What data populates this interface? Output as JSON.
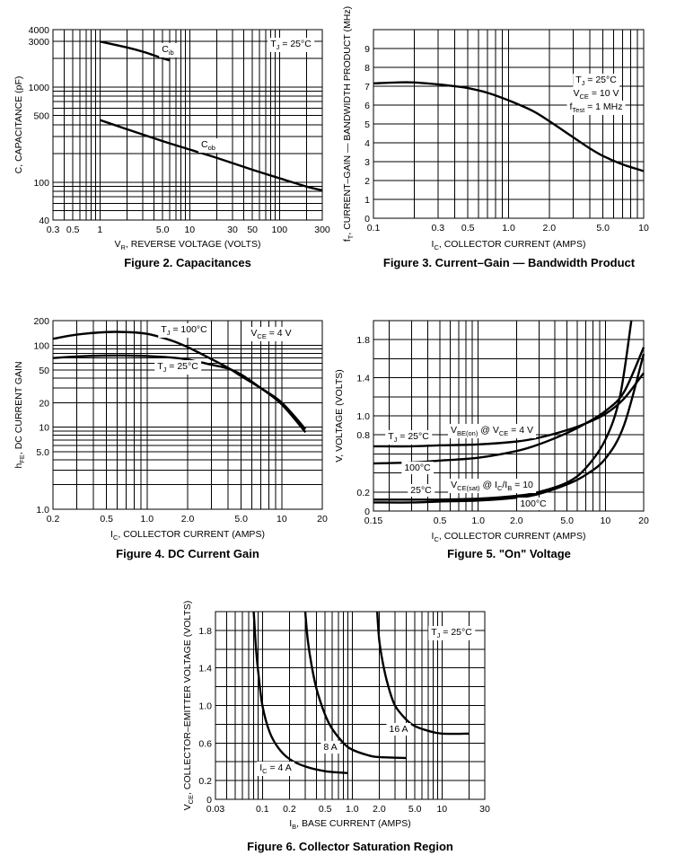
{
  "chart_data": [
    {
      "id": "fig2",
      "type": "line",
      "title": "Figure 2. Capacitances",
      "xlabel": "V_R, REVERSE VOLTAGE (VOLTS)",
      "ylabel": "C, CAPACITANCE (pF)",
      "xscale": "log",
      "yscale": "log",
      "xlim": [
        0.3,
        300
      ],
      "ylim": [
        40,
        4000
      ],
      "xticks": [
        {
          "v": 0.3,
          "l": "0.3"
        },
        {
          "v": 0.5,
          "l": "0.5"
        },
        {
          "v": 1,
          "l": "1"
        },
        {
          "v": 5,
          "l": "5.0"
        },
        {
          "v": 10,
          "l": "10"
        },
        {
          "v": 30,
          "l": "30"
        },
        {
          "v": 50,
          "l": "50"
        },
        {
          "v": 100,
          "l": "100"
        },
        {
          "v": 300,
          "l": "300"
        }
      ],
      "yticks": [
        {
          "v": 40,
          "l": "40"
        },
        {
          "v": 100,
          "l": "100"
        },
        {
          "v": 500,
          "l": "500"
        },
        {
          "v": 1000,
          "l": "1000"
        },
        {
          "v": 3000,
          "l": "3000"
        },
        {
          "v": 4000,
          "l": "4000"
        }
      ],
      "annotations": [
        {
          "text": "T_J = 25°C",
          "x": 160,
          "y": 3000
        }
      ],
      "series": [
        {
          "name": "C_ib",
          "label_at": [
            4.2,
            2600
          ],
          "x": [
            1,
            2,
            3,
            4,
            5,
            6
          ],
          "y": [
            3000,
            2600,
            2350,
            2150,
            2000,
            1900
          ]
        },
        {
          "name": "C_ob",
          "label_at": [
            18,
            190
          ],
          "x": [
            1,
            2,
            5,
            10,
            20,
            50,
            100,
            200,
            300
          ],
          "y": [
            450,
            360,
            270,
            220,
            180,
            135,
            110,
            90,
            82
          ]
        }
      ]
    },
    {
      "id": "fig3",
      "type": "line",
      "title": "Figure 3. Current–Gain — Bandwidth Product",
      "xlabel": "I_C, COLLECTOR CURRENT (AMPS)",
      "ylabel": "f_T, CURRENT–GAIN — BANDWIDTH PRODUCT (MHz)",
      "xscale": "log",
      "yscale": "linear",
      "xlim": [
        0.1,
        10
      ],
      "ylim": [
        0,
        10
      ],
      "xticks": [
        {
          "v": 0.1,
          "l": "0.1"
        },
        {
          "v": 0.3,
          "l": "0.3"
        },
        {
          "v": 0.5,
          "l": "0.5"
        },
        {
          "v": 1,
          "l": "1.0"
        },
        {
          "v": 2,
          "l": "2.0"
        },
        {
          "v": 5,
          "l": "5.0"
        },
        {
          "v": 10,
          "l": "10"
        }
      ],
      "yticks": [
        {
          "v": 0,
          "l": "0"
        },
        {
          "v": 1,
          "l": "1"
        },
        {
          "v": 2,
          "l": "2"
        },
        {
          "v": 3,
          "l": "3"
        },
        {
          "v": 4,
          "l": "4"
        },
        {
          "v": 5,
          "l": "5"
        },
        {
          "v": 6,
          "l": "6"
        },
        {
          "v": 7,
          "l": "7"
        },
        {
          "v": 8,
          "l": "8"
        },
        {
          "v": 9,
          "l": "9"
        }
      ],
      "annotations": [
        {
          "text": "T_J = 25°C"
        },
        {
          "text": "V_CE = 10 V"
        },
        {
          "text": "f_Test = 1 MHz"
        }
      ],
      "series": [
        {
          "name": "f_T",
          "x": [
            0.1,
            0.15,
            0.2,
            0.3,
            0.4,
            0.5,
            0.7,
            1.0,
            1.5,
            2.0,
            3.0,
            4.0,
            5.0,
            7.0,
            10
          ],
          "y": [
            7.15,
            7.2,
            7.2,
            7.1,
            7.0,
            6.9,
            6.65,
            6.25,
            5.7,
            5.15,
            4.3,
            3.7,
            3.3,
            2.85,
            2.5
          ]
        }
      ]
    },
    {
      "id": "fig4",
      "type": "line",
      "title": "Figure 4. DC Current Gain",
      "xlabel": "I_C, COLLECTOR CURRENT (AMPS)",
      "ylabel": "h_FE, DC CURRENT GAIN",
      "xscale": "log",
      "yscale": "log",
      "xlim": [
        0.2,
        20
      ],
      "ylim": [
        1,
        200
      ],
      "xticks": [
        {
          "v": 0.2,
          "l": "0.2"
        },
        {
          "v": 0.5,
          "l": "0.5"
        },
        {
          "v": 1,
          "l": "1.0"
        },
        {
          "v": 2,
          "l": "2.0"
        },
        {
          "v": 5,
          "l": "5.0"
        },
        {
          "v": 10,
          "l": "10"
        },
        {
          "v": 20,
          "l": "20"
        }
      ],
      "yticks": [
        {
          "v": 1,
          "l": "1.0"
        },
        {
          "v": 5,
          "l": "5.0"
        },
        {
          "v": 10,
          "l": "10"
        },
        {
          "v": 20,
          "l": "20"
        },
        {
          "v": 50,
          "l": "50"
        },
        {
          "v": 100,
          "l": "100"
        },
        {
          "v": 200,
          "l": "200"
        }
      ],
      "annotations": [
        {
          "text": "V_CE = 4 V"
        }
      ],
      "series": [
        {
          "name": "T_J = 100°C",
          "x": [
            0.2,
            0.3,
            0.5,
            0.7,
            1.0,
            1.5,
            2.0,
            3.0,
            4.0,
            5.0,
            7.0,
            10,
            15
          ],
          "y": [
            120,
            135,
            145,
            145,
            138,
            115,
            95,
            68,
            53,
            42,
            30,
            20,
            9.5
          ]
        },
        {
          "name": "T_J = 25°C",
          "x": [
            0.2,
            0.3,
            0.5,
            0.7,
            1.0,
            1.5,
            2.0,
            3.0,
            4.0,
            5.0,
            7.0,
            10,
            15
          ],
          "y": [
            70,
            73,
            75,
            75,
            74,
            71,
            67,
            58,
            52,
            44,
            30,
            19,
            8.7
          ]
        }
      ]
    },
    {
      "id": "fig5",
      "type": "line",
      "title": "Figure 5. \"On\" Voltage",
      "xlabel": "I_C, COLLECTOR CURRENT (AMPS)",
      "ylabel": "V, VOLTAGE (VOLTS)",
      "xscale": "log",
      "yscale": "linear",
      "xlim": [
        0.15,
        20
      ],
      "ylim": [
        0,
        2.0
      ],
      "xticks": [
        {
          "v": 0.15,
          "l": "0.15"
        },
        {
          "v": 0.5,
          "l": "0.5"
        },
        {
          "v": 1,
          "l": "1.0"
        },
        {
          "v": 2,
          "l": "2.0"
        },
        {
          "v": 5,
          "l": "5.0"
        },
        {
          "v": 10,
          "l": "10"
        },
        {
          "v": 20,
          "l": "20"
        }
      ],
      "yticks": [
        {
          "v": 0,
          "l": "0"
        },
        {
          "v": 0.2,
          "l": "0.2"
        },
        {
          "v": 0.8,
          "l": "0.8"
        },
        {
          "v": 1.0,
          "l": "1.0"
        },
        {
          "v": 1.4,
          "l": "1.4"
        },
        {
          "v": 1.8,
          "l": "1.8"
        }
      ],
      "annotations": [
        {
          "text": "V_BE(on) @ V_CE = 4 V"
        },
        {
          "text": "V_CE(sat) @ I_C/I_B = 10"
        },
        {
          "text": "T_J = 25°C"
        },
        {
          "text": "100°C"
        },
        {
          "text": "25°C"
        },
        {
          "text": "100°C"
        }
      ],
      "series": [
        {
          "name": "V_BE(on) 25°C",
          "x": [
            0.15,
            0.3,
            0.5,
            1.0,
            2.0,
            3.0,
            5.0,
            7.0,
            10,
            14,
            20
          ],
          "y": [
            0.68,
            0.68,
            0.69,
            0.7,
            0.73,
            0.77,
            0.85,
            0.92,
            1.02,
            1.18,
            1.45
          ]
        },
        {
          "name": "V_BE(on) 100°C",
          "x": [
            0.15,
            0.3,
            0.5,
            1.0,
            2.0,
            3.0,
            5.0,
            7.0,
            10,
            14,
            20
          ],
          "y": [
            0.5,
            0.51,
            0.53,
            0.56,
            0.63,
            0.7,
            0.82,
            0.92,
            1.05,
            1.25,
            1.72
          ]
        },
        {
          "name": "V_CE(sat) 25°C",
          "x": [
            0.15,
            0.3,
            0.5,
            1.0,
            2.0,
            3.0,
            5.0,
            7.0,
            10,
            13,
            16
          ],
          "y": [
            0.12,
            0.12,
            0.12,
            0.13,
            0.16,
            0.2,
            0.3,
            0.45,
            0.75,
            1.2,
            2.0
          ]
        },
        {
          "name": "V_CE(sat) 100°C",
          "x": [
            0.15,
            0.3,
            0.5,
            1.0,
            2.0,
            3.0,
            5.0,
            7.0,
            10,
            14,
            20
          ],
          "y": [
            0.09,
            0.09,
            0.1,
            0.11,
            0.14,
            0.18,
            0.28,
            0.38,
            0.55,
            0.9,
            1.65
          ]
        }
      ]
    },
    {
      "id": "fig6",
      "type": "line",
      "title": "Figure 6. Collector Saturation Region",
      "xlabel": "I_B, BASE CURRENT (AMPS)",
      "ylabel": "V_CE, COLLECTOR–EMITTER VOLTAGE (VOLTS)",
      "xscale": "log",
      "yscale": "linear",
      "xlim": [
        0.03,
        30
      ],
      "ylim": [
        0,
        2.0
      ],
      "xticks": [
        {
          "v": 0.03,
          "l": "0.03"
        },
        {
          "v": 0.1,
          "l": "0.1"
        },
        {
          "v": 0.2,
          "l": "0.2"
        },
        {
          "v": 0.5,
          "l": "0.5"
        },
        {
          "v": 1,
          "l": "1.0"
        },
        {
          "v": 2,
          "l": "2.0"
        },
        {
          "v": 5,
          "l": "5.0"
        },
        {
          "v": 10,
          "l": "10"
        },
        {
          "v": 30,
          "l": "30"
        }
      ],
      "yticks": [
        {
          "v": 0,
          "l": "0"
        },
        {
          "v": 0.2,
          "l": "0.2"
        },
        {
          "v": 0.6,
          "l": "0.6"
        },
        {
          "v": 1.0,
          "l": "1.0"
        },
        {
          "v": 1.4,
          "l": "1.4"
        },
        {
          "v": 1.8,
          "l": "1.8"
        }
      ],
      "annotations": [
        {
          "text": "T_J = 25°C"
        }
      ],
      "series": [
        {
          "name": "I_C = 4 A",
          "x": [
            0.08,
            0.085,
            0.09,
            0.1,
            0.12,
            0.15,
            0.2,
            0.3,
            0.5,
            0.9
          ],
          "y": [
            2.0,
            1.6,
            1.35,
            1.0,
            0.72,
            0.55,
            0.43,
            0.35,
            0.3,
            0.28
          ]
        },
        {
          "name": "8 A",
          "x": [
            0.3,
            0.32,
            0.35,
            0.4,
            0.5,
            0.6,
            0.8,
            1.0,
            1.5,
            2.0,
            4.0
          ],
          "y": [
            2.0,
            1.7,
            1.45,
            1.18,
            0.9,
            0.75,
            0.6,
            0.53,
            0.47,
            0.45,
            0.44
          ]
        },
        {
          "name": "16 A",
          "x": [
            1.9,
            2.0,
            2.2,
            2.5,
            3.0,
            4.0,
            5.0,
            7.0,
            10,
            20
          ],
          "y": [
            2.0,
            1.7,
            1.45,
            1.22,
            1.0,
            0.85,
            0.78,
            0.73,
            0.7,
            0.7
          ]
        }
      ]
    }
  ]
}
